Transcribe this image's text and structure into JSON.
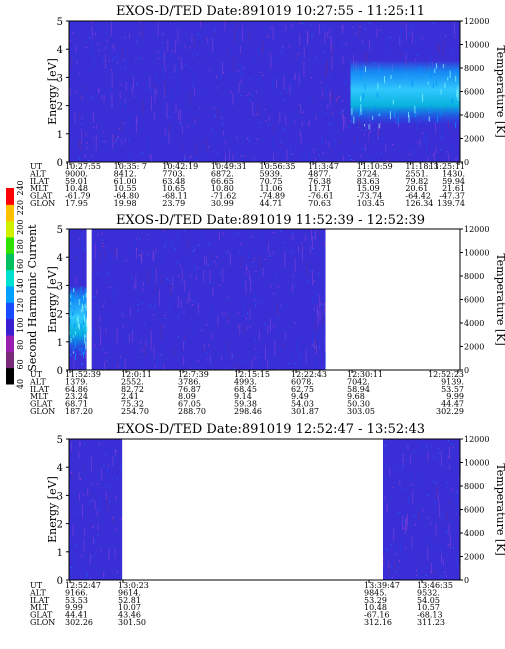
{
  "colorbar": {
    "label": "Second Harmonic Current",
    "ticks": [
      "40",
      "60",
      "80",
      "100",
      "120",
      "140",
      "160",
      "180",
      "200",
      "220",
      "240"
    ],
    "colors": [
      "#000000",
      "#7a2a7a",
      "#9a1fb0",
      "#3a1fd0",
      "#1a4cff",
      "#00a0ff",
      "#00e0d0",
      "#00c060",
      "#30e000",
      "#d0f000",
      "#ffc000",
      "#ff0000"
    ]
  },
  "chart_data": [
    {
      "type": "heatmap",
      "title": "EXOS-D/TED  Date:891019  10:27:55 - 11:25:11",
      "ylabel": "Energy [eV]",
      "y2label": "Temperature [K]",
      "ylim": [
        0,
        5
      ],
      "y2lim": [
        0,
        12000
      ],
      "yticks": [
        "0",
        "1",
        "2",
        "3",
        "4",
        "5"
      ],
      "y2ticks": [
        "0",
        "2000",
        "4000",
        "6000",
        "8000",
        "10000",
        "12000"
      ],
      "data_coverage": [
        [
          0,
          1
        ]
      ],
      "hot_region": {
        "x_start": 0.72,
        "x_end": 1.0,
        "y_low": 1.3,
        "y_high": 3.6
      },
      "ephemeris": {
        "labels": [
          "UT",
          "ALT",
          "ILAT",
          "MLT",
          "GLAT",
          "GLON"
        ],
        "columns": [
          {
            "UT": "10:27:55",
            "ALT": "9000.",
            "ILAT": "59.01",
            "MLT": "10.48",
            "GLAT": "-61.79",
            "GLON": "17.95"
          },
          {
            "UT": "10:35: 7",
            "ALT": "8412.",
            "ILAT": "61.00",
            "MLT": "10.55",
            "GLAT": "-64.80",
            "GLON": "19.98"
          },
          {
            "UT": "10:42:19",
            "ALT": "7703.",
            "ILAT": "63.48",
            "MLT": "10.65",
            "GLAT": "-68.11",
            "GLON": "23.79"
          },
          {
            "UT": "10:49:31",
            "ALT": "6872.",
            "ILAT": "66.65",
            "MLT": "10.80",
            "GLAT": "-71.62",
            "GLON": "30.99"
          },
          {
            "UT": "10:56:35",
            "ALT": "5939.",
            "ILAT": "70.75",
            "MLT": "11.06",
            "GLAT": "-74.89",
            "GLON": "44.71"
          },
          {
            "UT": "11:3:47",
            "ALT": "4877.",
            "ILAT": "76.38",
            "MLT": "11.71",
            "GLAT": "-76.61",
            "GLON": "70.63"
          },
          {
            "UT": "11:10:59",
            "ALT": "3724.",
            "ILAT": "83.63",
            "MLT": "15.09",
            "GLAT": "-73.74",
            "GLON": "103.45"
          },
          {
            "UT": "11:18: 3",
            "ALT": "2551.",
            "ILAT": "79.82",
            "MLT": "20.61",
            "GLAT": "-64.42",
            "GLON": "126.34"
          },
          {
            "UT": "11:25:11",
            "ALT": "1430.",
            "ILAT": "59.94",
            "MLT": "21.61",
            "GLAT": "-47.37",
            "GLON": "139.74"
          }
        ]
      }
    },
    {
      "type": "heatmap",
      "title": "EXOS-D/TED  Date:891019  11:52:39 - 12:52:39",
      "ylabel": "Energy [eV]",
      "y2label": "Temperature [K]",
      "ylim": [
        0,
        5
      ],
      "y2lim": [
        0,
        12000
      ],
      "yticks": [
        "0",
        "1",
        "2",
        "3",
        "4",
        "5"
      ],
      "y2ticks": [
        "0",
        "2000",
        "4000",
        "6000",
        "8000",
        "10000",
        "12000"
      ],
      "data_coverage": [
        [
          0,
          0.045
        ],
        [
          0.058,
          0.656
        ]
      ],
      "hot_region": {
        "x_start": 0.0,
        "x_end": 0.045,
        "y_low": 0.5,
        "y_high": 3.0
      },
      "ephemeris": {
        "labels": [
          "UT",
          "ALT",
          "ILAT",
          "MLT",
          "GLAT",
          "GLON"
        ],
        "columns": [
          {
            "UT": "11:52:39",
            "ALT": "1379.",
            "ILAT": "64.86",
            "MLT": "23.24",
            "GLAT": "68.71",
            "GLON": "187.20"
          },
          {
            "UT": "12:0:11",
            "ALT": "2552.",
            "ILAT": "82.72",
            "MLT": "2.41",
            "GLAT": "75.32",
            "GLON": "254.70"
          },
          {
            "UT": "12:7:39",
            "ALT": "3786.",
            "ILAT": "76.87",
            "MLT": "8.09",
            "GLAT": "67.05",
            "GLON": "288.70"
          },
          {
            "UT": "12:15:15",
            "ALT": "4993.",
            "ILAT": "68.45",
            "MLT": "9.14",
            "GLAT": "59.38",
            "GLON": "298.46"
          },
          {
            "UT": "12:22:43",
            "ALT": "6078.",
            "ILAT": "62.75",
            "MLT": "9.49",
            "GLAT": "54.03",
            "GLON": "301.87"
          },
          {
            "UT": "12:30:11",
            "ALT": "7042.",
            "ILAT": "58.94",
            "MLT": "9.68",
            "GLAT": "50.30",
            "GLON": "303.05"
          },
          {
            "UT": "12:52:23",
            "ALT": "9139.",
            "ILAT": "53.57",
            "MLT": "9.99",
            "GLAT": "44.47",
            "GLON": "302.29"
          }
        ]
      }
    },
    {
      "type": "heatmap",
      "title": "EXOS-D/TED  Date:891019  12:52:47 - 13:52:43",
      "ylabel": "Energy [eV]",
      "y2label": "Temperature [K]",
      "ylim": [
        0,
        5
      ],
      "y2lim": [
        0,
        12000
      ],
      "yticks": [
        "0",
        "1",
        "2",
        "3",
        "4",
        "5"
      ],
      "y2ticks": [
        "0",
        "2000",
        "4000",
        "6000",
        "8000",
        "10000",
        "12000"
      ],
      "data_coverage": [
        [
          0,
          0.136
        ],
        [
          0.803,
          1
        ]
      ],
      "hot_region": null,
      "ephemeris": {
        "labels": [
          "UT",
          "ALT",
          "ILAT",
          "MLT",
          "GLAT",
          "GLON"
        ],
        "columns": [
          {
            "UT": "12:52:47",
            "ALT": "9166.",
            "ILAT": "53.53",
            "MLT": "9.99",
            "GLAT": "44.41",
            "GLON": "302.26"
          },
          {
            "UT": "13:0:23",
            "ALT": "9614.",
            "ILAT": "52.81",
            "MLT": "10.07",
            "GLAT": "43.46",
            "GLON": "301.50"
          },
          {
            "UT": "13:39:47",
            "ALT": "9845.",
            "ILAT": "53.29",
            "MLT": "10.48",
            "GLAT": "-67.16",
            "GLON": "312.16"
          },
          {
            "UT": "13:46:35",
            "ALT": "9532.",
            "ILAT": "54.05",
            "MLT": "10.57",
            "GLAT": "-68.13",
            "GLON": "311.23"
          }
        ]
      }
    }
  ]
}
